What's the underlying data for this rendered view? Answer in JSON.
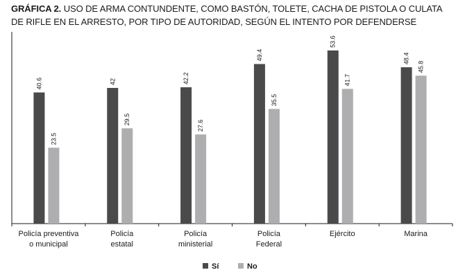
{
  "chart_data": {
    "type": "bar",
    "title_prefix": "GRÁFICA 2.",
    "title": "USO DE ARMA CONTUNDENTE, COMO BASTÓN, TOLETE, CACHA DE PISTOLA O CULATA DE RIFLE EN EL ARRESTO, POR TIPO DE AUTORIDAD, SEGÚN EL INTENTO POR DEFENDERSE",
    "categories": [
      [
        "Policía preventiva",
        "o municipal"
      ],
      [
        "Policía",
        "estatal"
      ],
      [
        "Policía",
        "ministerial"
      ],
      [
        "Policía",
        "Federal"
      ],
      [
        "Ejército"
      ],
      [
        "Marina"
      ]
    ],
    "series": [
      {
        "name": "Sí",
        "color": "#4a4a4a",
        "values": [
          40.6,
          42,
          42.2,
          49.4,
          53.6,
          48.4
        ],
        "labels": [
          "40.6",
          "42",
          "42.2",
          "49.4",
          "53.6",
          "48.4"
        ]
      },
      {
        "name": "No",
        "color": "#aeaeb0",
        "values": [
          23.5,
          29.5,
          27.6,
          35.5,
          41.7,
          45.8
        ],
        "labels": [
          "23.5",
          "29.5",
          "27.6",
          "35.5",
          "41.7",
          "45.8"
        ]
      }
    ],
    "ylim": [
      0,
      60
    ],
    "grid": false,
    "legend_position": "bottom-center"
  }
}
